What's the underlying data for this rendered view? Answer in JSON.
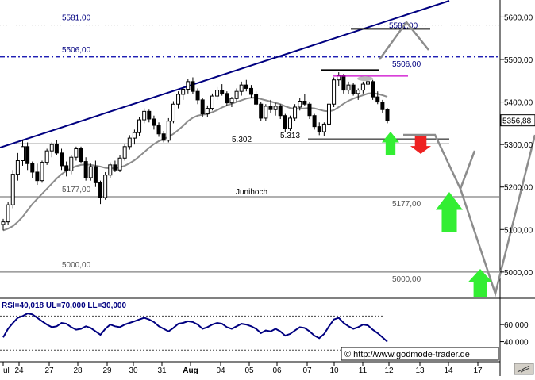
{
  "chart_data": [
    {
      "type": "candlestick",
      "instrument_price_axis": {
        "ylim": [
          4940,
          5640
        ],
        "ticks": [
          "5600,00",
          "5500,00",
          "5400,00",
          "5300,00",
          "5200,00",
          "5100,00",
          "5000,00"
        ],
        "last_price_badge": "5356,88"
      },
      "x_tick_labels": [
        "ul",
        "24",
        "27",
        "28",
        "29",
        "30",
        "31",
        "Aug",
        "04",
        "05",
        "06",
        "07",
        "10",
        "11",
        "12",
        "13",
        "14",
        "17"
      ],
      "ohlc": [
        [
          5112,
          5125,
          5098,
          5118
        ],
        [
          5118,
          5165,
          5110,
          5158
        ],
        [
          5158,
          5240,
          5150,
          5230
        ],
        [
          5230,
          5280,
          5215,
          5262
        ],
        [
          5262,
          5310,
          5250,
          5295
        ],
        [
          5295,
          5305,
          5240,
          5255
        ],
        [
          5255,
          5260,
          5220,
          5235
        ],
        [
          5235,
          5255,
          5205,
          5215
        ],
        [
          5215,
          5262,
          5210,
          5258
        ],
        [
          5258,
          5290,
          5252,
          5285
        ],
        [
          5285,
          5305,
          5270,
          5300
        ],
        [
          5300,
          5310,
          5275,
          5280
        ],
        [
          5280,
          5290,
          5240,
          5250
        ],
        [
          5250,
          5260,
          5225,
          5238
        ],
        [
          5238,
          5275,
          5230,
          5270
        ],
        [
          5270,
          5295,
          5262,
          5290
        ],
        [
          5290,
          5295,
          5255,
          5260
        ],
        [
          5260,
          5270,
          5215,
          5222
        ],
        [
          5222,
          5255,
          5215,
          5248
        ],
        [
          5248,
          5262,
          5200,
          5210
        ],
        [
          5210,
          5215,
          5160,
          5175
        ],
        [
          5175,
          5235,
          5170,
          5228
        ],
        [
          5228,
          5258,
          5220,
          5252
        ],
        [
          5252,
          5262,
          5235,
          5240
        ],
        [
          5240,
          5275,
          5235,
          5268
        ],
        [
          5268,
          5302,
          5262,
          5295
        ],
        [
          5295,
          5322,
          5288,
          5315
        ],
        [
          5315,
          5335,
          5300,
          5328
        ],
        [
          5328,
          5365,
          5320,
          5358
        ],
        [
          5358,
          5385,
          5350,
          5378
        ],
        [
          5378,
          5382,
          5352,
          5360
        ],
        [
          5360,
          5368,
          5335,
          5345
        ],
        [
          5345,
          5352,
          5318,
          5325
        ],
        [
          5325,
          5332,
          5305,
          5310
        ],
        [
          5310,
          5362,
          5305,
          5355
        ],
        [
          5355,
          5402,
          5350,
          5395
        ],
        [
          5395,
          5425,
          5385,
          5418
        ],
        [
          5418,
          5438,
          5405,
          5430
        ],
        [
          5430,
          5455,
          5420,
          5448
        ],
        [
          5448,
          5458,
          5418,
          5425
        ],
        [
          5425,
          5432,
          5395,
          5405
        ],
        [
          5405,
          5410,
          5365,
          5372
        ],
        [
          5372,
          5392,
          5365,
          5385
        ],
        [
          5385,
          5420,
          5380,
          5414
        ],
        [
          5414,
          5435,
          5405,
          5428
        ],
        [
          5428,
          5442,
          5415,
          5420
        ],
        [
          5420,
          5425,
          5390,
          5398
        ],
        [
          5398,
          5412,
          5388,
          5408
        ],
        [
          5408,
          5432,
          5400,
          5425
        ],
        [
          5425,
          5448,
          5415,
          5440
        ],
        [
          5440,
          5452,
          5425,
          5432
        ],
        [
          5432,
          5440,
          5410,
          5418
        ],
        [
          5418,
          5425,
          5390,
          5395
        ],
        [
          5395,
          5400,
          5355,
          5362
        ],
        [
          5362,
          5395,
          5355,
          5390
        ],
        [
          5390,
          5405,
          5375,
          5382
        ],
        [
          5382,
          5398,
          5368,
          5390
        ],
        [
          5390,
          5395,
          5360,
          5368
        ],
        [
          5368,
          5372,
          5330,
          5338
        ],
        [
          5338,
          5368,
          5332,
          5362
        ],
        [
          5362,
          5395,
          5355,
          5388
        ],
        [
          5388,
          5410,
          5380,
          5402
        ],
        [
          5402,
          5418,
          5390,
          5395
        ],
        [
          5395,
          5400,
          5360,
          5368
        ],
        [
          5368,
          5372,
          5335,
          5342
        ],
        [
          5342,
          5352,
          5322,
          5330
        ],
        [
          5330,
          5352,
          5320,
          5348
        ],
        [
          5348,
          5402,
          5342,
          5395
        ],
        [
          5395,
          5458,
          5388,
          5452
        ],
        [
          5452,
          5470,
          5438,
          5462
        ],
        [
          5462,
          5466,
          5420,
          5428
        ],
        [
          5428,
          5448,
          5418,
          5440
        ],
        [
          5440,
          5445,
          5415,
          5420
        ],
        [
          5420,
          5432,
          5405,
          5428
        ],
        [
          5428,
          5448,
          5420,
          5442
        ],
        [
          5442,
          5456,
          5430,
          5448
        ],
        [
          5448,
          5452,
          5405,
          5412
        ],
        [
          5412,
          5425,
          5395,
          5400
        ],
        [
          5400,
          5405,
          5375,
          5382
        ],
        [
          5382,
          5386,
          5350,
          5357
        ]
      ],
      "moving_average": [
        5098,
        5102,
        5108,
        5118,
        5130,
        5145,
        5160,
        5172,
        5184,
        5196,
        5208,
        5220,
        5230,
        5238,
        5244,
        5249,
        5252,
        5253,
        5252,
        5250,
        5248,
        5245,
        5244,
        5244,
        5246,
        5250,
        5256,
        5263,
        5272,
        5282,
        5292,
        5301,
        5308,
        5313,
        5318,
        5325,
        5334,
        5344,
        5355,
        5363,
        5368,
        5370,
        5372,
        5376,
        5381,
        5387,
        5392,
        5396,
        5400,
        5404,
        5408,
        5410,
        5410,
        5407,
        5404,
        5401,
        5398,
        5395,
        5390,
        5386,
        5384,
        5384,
        5385,
        5386,
        5385,
        5382,
        5379,
        5378,
        5381,
        5388,
        5396,
        5403,
        5408,
        5412,
        5416,
        5420,
        5421,
        5419,
        5416,
        5412
      ],
      "horizontal_levels": [
        {
          "value": 5581,
          "label": "5581,00"
        },
        {
          "value": 5506,
          "label": "5506,00"
        },
        {
          "value": 5302,
          "label": "5.302"
        },
        {
          "value": 5313,
          "label": "5.313"
        },
        {
          "value": 5177,
          "label": "5177,00"
        },
        {
          "value": 5000,
          "label": "5000,00"
        }
      ],
      "level_labels_right": [
        "5581,00",
        "5506,00",
        "5177,00",
        "5000,00"
      ],
      "annotations": [
        "Junihoch"
      ],
      "forecast_path_label_note": "",
      "watermark": "© http://www.godmode-trader.de",
      "colors": {
        "trend": "#000080",
        "candle": "#000000",
        "ma": "#8c8c8c",
        "up_arrow": "#33ee33",
        "down_arrow": "#ee2222",
        "level": "#808080",
        "dashed_level": "#0000aa",
        "magenta_level": "#cc00cc"
      }
    },
    {
      "type": "line",
      "title": "RSI=40,018 UL=70,000 LL=30,000",
      "ylim": [
        20,
        90
      ],
      "ticks": [
        "60,000",
        "40,000"
      ],
      "values": [
        45,
        55,
        62,
        68,
        70,
        73,
        72,
        68,
        64,
        60,
        57,
        58,
        62,
        61,
        57,
        54,
        55,
        58,
        56,
        52,
        48,
        55,
        60,
        58,
        57,
        60,
        62,
        64,
        66,
        68,
        66,
        63,
        58,
        55,
        52,
        56,
        61,
        62,
        64,
        63,
        60,
        55,
        57,
        60,
        62,
        61,
        57,
        55,
        58,
        61,
        60,
        58,
        55,
        50,
        53,
        52,
        55,
        52,
        47,
        49,
        53,
        57,
        56,
        52,
        47,
        44,
        49,
        58,
        66,
        68,
        62,
        58,
        55,
        57,
        60,
        59,
        54,
        50,
        45,
        40
      ]
    }
  ]
}
